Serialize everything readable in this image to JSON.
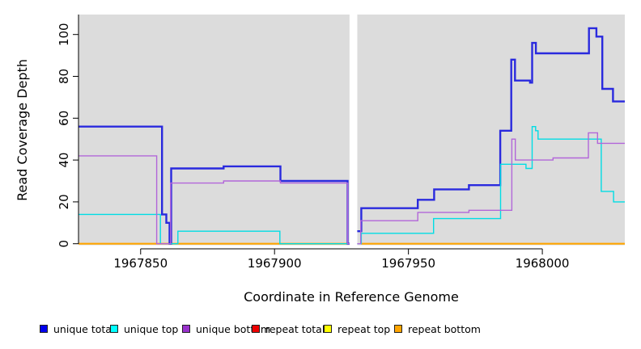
{
  "chart_data": {
    "type": "step-line",
    "title": "",
    "xlabel": "Coordinate in Reference Genome",
    "ylabel": "Read Coverage Depth",
    "x_ticks": [
      1967850,
      1967900,
      1967950,
      1968000
    ],
    "y_ticks": [
      0,
      20,
      40,
      60,
      80,
      100
    ],
    "x_range": [
      1967826.8,
      1968030.8
    ],
    "y_range": [
      0,
      109
    ],
    "grid": false,
    "plot_background": "#dcdcdc",
    "gap_x": [
      1967928.0,
      1967930.9
    ],
    "legend_position": "bottom",
    "series": [
      {
        "name": "unique total",
        "color": "#2a2ade",
        "legend_color": "#0000ee",
        "line_width": 2.4,
        "segments": [
          {
            "points": [
              [
                1967826.8,
                56
              ],
              [
                1967858.0,
                14
              ],
              [
                1967859.6,
                10
              ],
              [
                1967860.8,
                0
              ],
              [
                1967861.4,
                36
              ],
              [
                1967881.0,
                37
              ],
              [
                1967902.2,
                30
              ],
              [
                1967927.3,
                0
              ]
            ],
            "end": 1967928.0
          },
          {
            "points": [
              [
                1967930.9,
                6
              ],
              [
                1967932.4,
                17
              ],
              [
                1967953.5,
                21
              ],
              [
                1967959.6,
                26
              ],
              [
                1967972.6,
                28
              ],
              [
                1967984.3,
                54
              ],
              [
                1967988.4,
                88
              ],
              [
                1967989.8,
                78
              ],
              [
                1967995.4,
                77
              ],
              [
                1967996.2,
                96
              ],
              [
                1967997.6,
                91
              ],
              [
                1968017.4,
                103
              ],
              [
                1968020.2,
                99
              ],
              [
                1968022.4,
                74
              ],
              [
                1968026.4,
                68
              ]
            ],
            "end": 1968030.8
          }
        ]
      },
      {
        "name": "unique top",
        "color": "#00dde4",
        "legend_color": "#00ffff",
        "line_width": 1.4,
        "segments": [
          {
            "points": [
              [
                1967826.8,
                14
              ],
              [
                1967857.4,
                0
              ],
              [
                1967863.9,
                6
              ],
              [
                1967902.0,
                0
              ]
            ],
            "end": 1967928.0
          },
          {
            "points": [
              [
                1967930.9,
                0
              ],
              [
                1967932.4,
                5
              ],
              [
                1967959.4,
                12
              ],
              [
                1967984.4,
                38
              ],
              [
                1967993.9,
                36
              ],
              [
                1967996.2,
                56
              ],
              [
                1967997.5,
                54
              ],
              [
                1967998.4,
                50
              ],
              [
                1968022.0,
                25
              ],
              [
                1968026.6,
                20
              ]
            ],
            "end": 1968030.8
          }
        ]
      },
      {
        "name": "unique bottom",
        "color": "#b266d9",
        "legend_color": "#9932cc",
        "line_width": 1.4,
        "segments": [
          {
            "points": [
              [
                1967826.8,
                42
              ],
              [
                1967856.0,
                0
              ],
              [
                1967861.2,
                29
              ],
              [
                1967881.0,
                30
              ],
              [
                1967902.2,
                29
              ],
              [
                1967927.3,
                0
              ]
            ],
            "end": 1967928.0
          },
          {
            "points": [
              [
                1967930.9,
                0
              ],
              [
                1967932.2,
                11
              ],
              [
                1967953.5,
                15
              ],
              [
                1967972.6,
                16
              ],
              [
                1967988.6,
                50
              ],
              [
                1967989.9,
                40
              ],
              [
                1968004.0,
                41
              ],
              [
                1968017.2,
                53
              ],
              [
                1968020.6,
                48
              ]
            ],
            "end": 1968030.8
          }
        ]
      },
      {
        "name": "repeat total",
        "color": "#ee0000",
        "legend_color": "#ee0000",
        "line_width": 1.4,
        "segments": [
          {
            "points": [
              [
                1967826.8,
                0
              ]
            ],
            "end": 1967928.0
          },
          {
            "points": [
              [
                1967932.3,
                0
              ]
            ],
            "end": 1968030.8
          }
        ]
      },
      {
        "name": "repeat top",
        "color": "#ffff00",
        "legend_color": "#ffff00",
        "line_width": 1.4,
        "segments": [
          {
            "points": [
              [
                1967826.8,
                0
              ]
            ],
            "end": 1967928.0
          },
          {
            "points": [
              [
                1967932.3,
                0
              ]
            ],
            "end": 1968030.8
          }
        ]
      },
      {
        "name": "repeat bottom",
        "color": "#ffa500",
        "legend_color": "#ffa500",
        "line_width": 2.2,
        "segments": [
          {
            "points": [
              [
                1967826.8,
                0
              ]
            ],
            "end": 1967928.0
          },
          {
            "points": [
              [
                1967932.3,
                0
              ]
            ],
            "end": 1968030.8
          }
        ]
      }
    ]
  }
}
